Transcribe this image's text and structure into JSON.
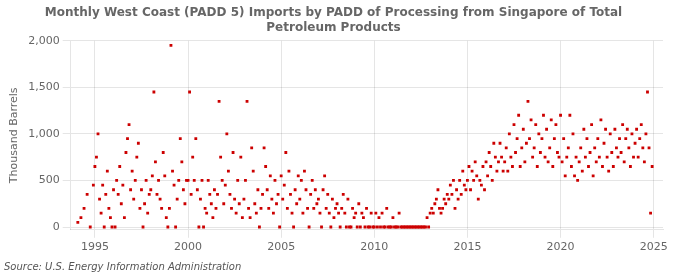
{
  "chart_data": {
    "type": "scatter",
    "title": "Monthly West Coast (PADD 5) Imports by PADD of Processing from Singapore of Total\nPetroleum Products",
    "ylabel": "Thousand Barrels",
    "source": "Source: U.S. Energy Information Administration",
    "color": "#cc0000",
    "marker": "square",
    "grid": true,
    "xlim": [
      1993.7,
      2025.5
    ],
    "ylim": [
      -30,
      2000
    ],
    "xticks": [
      1995,
      2000,
      2005,
      2010,
      2015,
      2020,
      2025
    ],
    "yticks": [
      0,
      500,
      {
        "value": 1000,
        "label": "1,000"
      },
      {
        "value": 1500,
        "label": "1,500"
      },
      {
        "value": 2000,
        "label": "2,000"
      }
    ],
    "x": [
      1994.083,
      1994.25,
      1994.417,
      1994.583,
      1994.75,
      1994.917,
      1995.0,
      1995.083,
      1995.167,
      1995.25,
      1995.333,
      1995.417,
      1995.5,
      1995.583,
      1995.667,
      1995.75,
      1995.833,
      1995.917,
      1996.0,
      1996.083,
      1996.167,
      1996.25,
      1996.333,
      1996.417,
      1996.5,
      1996.583,
      1996.667,
      1996.75,
      1996.833,
      1996.917,
      1997.0,
      1997.083,
      1997.167,
      1997.25,
      1997.333,
      1997.417,
      1997.5,
      1997.583,
      1997.667,
      1997.75,
      1997.833,
      1997.917,
      1998.0,
      1998.083,
      1998.167,
      1998.25,
      1998.333,
      1998.417,
      1998.5,
      1998.583,
      1998.667,
      1998.75,
      1998.833,
      1998.917,
      1999.0,
      1999.083,
      1999.167,
      1999.25,
      1999.333,
      1999.417,
      1999.5,
      1999.583,
      1999.667,
      1999.75,
      1999.833,
      1999.917,
      2000.0,
      2000.083,
      2000.167,
      2000.25,
      2000.333,
      2000.417,
      2000.5,
      2000.583,
      2000.667,
      2000.75,
      2000.833,
      2000.917,
      2001.0,
      2001.083,
      2001.167,
      2001.25,
      2001.333,
      2001.417,
      2001.5,
      2001.583,
      2001.667,
      2001.75,
      2001.833,
      2001.917,
      2002.0,
      2002.083,
      2002.167,
      2002.25,
      2002.333,
      2002.417,
      2002.5,
      2002.583,
      2002.667,
      2002.75,
      2002.833,
      2002.917,
      2003.0,
      2003.083,
      2003.167,
      2003.25,
      2003.333,
      2003.417,
      2003.5,
      2003.583,
      2003.667,
      2003.75,
      2003.833,
      2003.917,
      2004.0,
      2004.083,
      2004.167,
      2004.25,
      2004.333,
      2004.417,
      2004.5,
      2004.583,
      2004.667,
      2004.75,
      2004.833,
      2004.917,
      2005.0,
      2005.083,
      2005.167,
      2005.25,
      2005.333,
      2005.417,
      2005.5,
      2005.583,
      2005.667,
      2005.75,
      2005.833,
      2005.917,
      2006.0,
      2006.083,
      2006.167,
      2006.25,
      2006.333,
      2006.417,
      2006.5,
      2006.583,
      2006.667,
      2006.75,
      2006.833,
      2006.917,
      2007.0,
      2007.083,
      2007.167,
      2007.25,
      2007.333,
      2007.417,
      2007.5,
      2007.583,
      2007.667,
      2007.75,
      2007.833,
      2007.917,
      2008.0,
      2008.083,
      2008.167,
      2008.25,
      2008.333,
      2008.417,
      2008.5,
      2008.583,
      2008.667,
      2008.75,
      2008.833,
      2008.917,
      2009.0,
      2009.083,
      2009.167,
      2009.25,
      2009.333,
      2009.417,
      2009.5,
      2009.583,
      2009.667,
      2009.75,
      2009.833,
      2009.917,
      2010.0,
      2010.083,
      2010.167,
      2010.25,
      2010.333,
      2010.417,
      2010.5,
      2010.583,
      2010.667,
      2010.75,
      2010.833,
      2010.917,
      2011.0,
      2011.083,
      2011.167,
      2011.25,
      2011.333,
      2011.417,
      2011.5,
      2011.583,
      2011.667,
      2011.75,
      2011.833,
      2011.917,
      2012.0,
      2012.083,
      2012.167,
      2012.25,
      2012.333,
      2012.417,
      2012.5,
      2012.583,
      2012.667,
      2012.75,
      2012.833,
      2012.917,
      2013.0,
      2013.083,
      2013.167,
      2013.25,
      2013.333,
      2013.417,
      2013.5,
      2013.583,
      2013.667,
      2013.75,
      2013.833,
      2013.917,
      2014.0,
      2014.083,
      2014.167,
      2014.25,
      2014.333,
      2014.417,
      2014.5,
      2014.583,
      2014.667,
      2014.75,
      2014.833,
      2014.917,
      2015.0,
      2015.083,
      2015.167,
      2015.25,
      2015.333,
      2015.417,
      2015.5,
      2015.583,
      2015.667,
      2015.75,
      2015.833,
      2015.917,
      2016.0,
      2016.083,
      2016.167,
      2016.25,
      2016.333,
      2016.417,
      2016.5,
      2016.583,
      2016.667,
      2016.75,
      2016.833,
      2016.917,
      2017.0,
      2017.083,
      2017.167,
      2017.25,
      2017.333,
      2017.417,
      2017.5,
      2017.583,
      2017.667,
      2017.75,
      2017.833,
      2017.917,
      2018.0,
      2018.083,
      2018.167,
      2018.25,
      2018.333,
      2018.417,
      2018.5,
      2018.583,
      2018.667,
      2018.75,
      2018.833,
      2018.917,
      2019.0,
      2019.083,
      2019.167,
      2019.25,
      2019.333,
      2019.417,
      2019.5,
      2019.583,
      2019.667,
      2019.75,
      2019.833,
      2019.917,
      2020.0,
      2020.083,
      2020.167,
      2020.25,
      2020.333,
      2020.417,
      2020.5,
      2020.583,
      2020.667,
      2020.75,
      2020.833,
      2020.917,
      2021.0,
      2021.083,
      2021.167,
      2021.25,
      2021.333,
      2021.417,
      2021.5,
      2021.583,
      2021.667,
      2021.75,
      2021.833,
      2021.917,
      2022.0,
      2022.083,
      2022.167,
      2022.25,
      2022.333,
      2022.417,
      2022.5,
      2022.583,
      2022.667,
      2022.75,
      2022.833,
      2022.917,
      2023.0,
      2023.083,
      2023.167,
      2023.25,
      2023.333,
      2023.417,
      2023.5,
      2023.583,
      2023.667,
      2023.75,
      2023.833,
      2023.917,
      2024.0,
      2024.083,
      2024.167,
      2024.25,
      2024.333,
      2024.417,
      2024.5,
      2024.583,
      2024.667,
      2024.75,
      2024.833,
      2024.917
    ],
    "values": [
      50,
      100,
      200,
      350,
      0,
      450,
      650,
      750,
      1000,
      300,
      150,
      450,
      0,
      350,
      600,
      200,
      100,
      0,
      400,
      0,
      500,
      350,
      650,
      250,
      450,
      100,
      800,
      950,
      1100,
      400,
      600,
      300,
      500,
      750,
      900,
      200,
      400,
      0,
      250,
      500,
      150,
      350,
      400,
      550,
      1450,
      700,
      350,
      500,
      300,
      200,
      800,
      550,
      100,
      0,
      200,
      1950,
      600,
      450,
      0,
      300,
      500,
      950,
      700,
      400,
      250,
      500,
      500,
      1450,
      350,
      750,
      500,
      950,
      400,
      0,
      300,
      500,
      0,
      200,
      150,
      500,
      350,
      250,
      100,
      400,
      200,
      350,
      1350,
      750,
      500,
      250,
      450,
      1000,
      600,
      350,
      200,
      800,
      300,
      150,
      500,
      250,
      750,
      100,
      300,
      500,
      1350,
      200,
      100,
      850,
      600,
      250,
      150,
      400,
      0,
      200,
      350,
      850,
      650,
      400,
      200,
      550,
      300,
      150,
      500,
      250,
      350,
      0,
      550,
      300,
      450,
      800,
      200,
      600,
      350,
      150,
      0,
      400,
      250,
      550,
      300,
      500,
      150,
      600,
      400,
      200,
      0,
      350,
      500,
      200,
      400,
      250,
      300,
      150,
      0,
      400,
      550,
      200,
      350,
      150,
      0,
      300,
      100,
      200,
      250,
      150,
      0,
      200,
      350,
      150,
      0,
      300,
      0,
      0,
      200,
      100,
      150,
      0,
      250,
      0,
      150,
      100,
      0,
      200,
      0,
      0,
      150,
      0,
      0,
      150,
      0,
      100,
      0,
      150,
      0,
      0,
      200,
      0,
      0,
      0,
      100,
      0,
      0,
      0,
      150,
      0,
      0,
      0,
      0,
      0,
      0,
      0,
      0,
      0,
      0,
      0,
      0,
      0,
      0,
      0,
      0,
      0,
      100,
      0,
      150,
      200,
      150,
      250,
      300,
      400,
      200,
      150,
      200,
      300,
      250,
      350,
      300,
      450,
      350,
      500,
      200,
      400,
      300,
      500,
      350,
      600,
      450,
      400,
      500,
      650,
      400,
      600,
      500,
      700,
      550,
      300,
      500,
      450,
      650,
      400,
      700,
      550,
      800,
      650,
      500,
      900,
      750,
      600,
      700,
      900,
      750,
      600,
      700,
      850,
      600,
      1000,
      750,
      650,
      1100,
      800,
      950,
      1200,
      650,
      850,
      1050,
      700,
      900,
      1350,
      950,
      1150,
      750,
      850,
      1100,
      650,
      1000,
      800,
      950,
      1200,
      750,
      1050,
      700,
      850,
      1150,
      650,
      950,
      1100,
      800,
      750,
      1200,
      700,
      950,
      550,
      750,
      850,
      1200,
      650,
      1000,
      550,
      750,
      500,
      700,
      850,
      600,
      1050,
      750,
      950,
      650,
      800,
      1100,
      550,
      850,
      700,
      950,
      750,
      1150,
      650,
      900,
      1050,
      750,
      600,
      1000,
      800,
      650,
      1050,
      850,
      750,
      950,
      800,
      1100,
      700,
      950,
      1050,
      850,
      650,
      1000,
      750,
      900,
      1050,
      750,
      950,
      1100,
      850,
      700,
      1000,
      1450,
      850,
      150,
      650
    ]
  }
}
